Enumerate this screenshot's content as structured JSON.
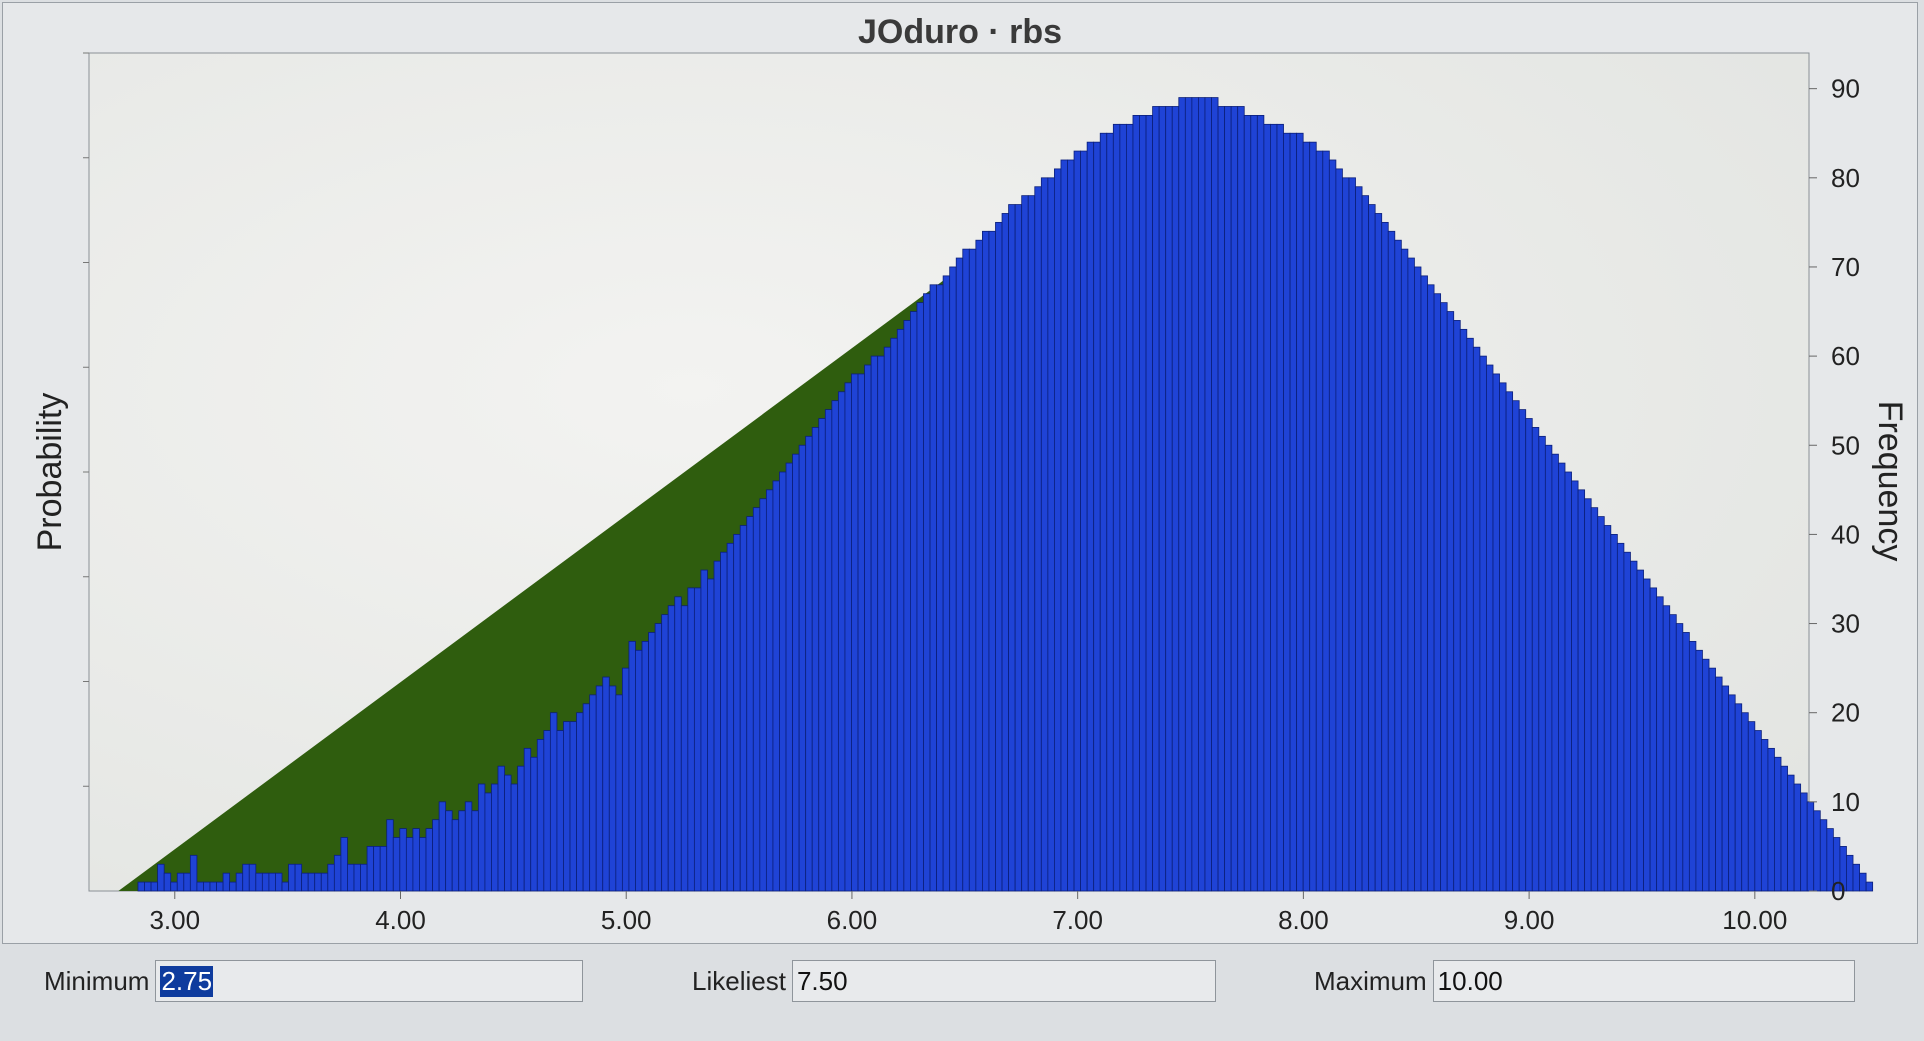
{
  "chart_data": {
    "type": "bar",
    "title": "JOduro · rbs",
    "ylabel_left": "Probability",
    "ylabel_right": "Frequency",
    "xlim": [
      2.62,
      10.24
    ],
    "ylim": [
      0,
      94
    ],
    "x_ticks": [
      "3.00",
      "4.00",
      "5.00",
      "6.00",
      "7.00",
      "8.00",
      "9.00",
      "10.00"
    ],
    "y_ticks": [
      "0",
      "10",
      "20",
      "30",
      "40",
      "50",
      "60",
      "70",
      "80",
      "90"
    ],
    "distribution": {
      "type": "triangular",
      "min": 2.75,
      "mode": 7.5,
      "max": 10.0,
      "peak_frequency": 89
    },
    "bin_width": 0.029,
    "bins_start": 2.75,
    "frequencies": [
      0,
      0,
      0,
      1,
      1,
      1,
      3,
      2,
      1,
      2,
      2,
      4,
      1,
      1,
      1,
      1,
      2,
      1,
      2,
      3,
      3,
      2,
      2,
      2,
      2,
      1,
      3,
      3,
      2,
      2,
      2,
      2,
      3,
      4,
      6,
      3,
      3,
      3,
      5,
      5,
      5,
      8,
      6,
      7,
      6,
      7,
      6,
      7,
      8,
      10,
      9,
      8,
      9,
      10,
      9,
      12,
      11,
      12,
      14,
      13,
      12,
      14,
      16,
      15,
      17,
      18,
      20,
      18,
      19,
      19,
      20,
      21,
      22,
      23,
      24,
      23,
      22,
      25,
      28,
      27,
      28,
      29,
      30,
      31,
      32,
      33,
      32,
      34,
      34,
      36,
      35,
      37,
      38,
      39,
      40,
      41,
      42,
      43,
      44,
      45,
      46,
      47,
      48,
      49,
      50,
      51,
      52,
      53,
      54,
      55,
      56,
      57,
      58,
      58,
      59,
      60,
      60,
      61,
      62,
      63,
      64,
      65,
      66,
      67,
      68,
      68,
      69,
      70,
      71,
      72,
      72,
      73,
      74,
      74,
      75,
      76,
      77,
      77,
      78,
      78,
      79,
      80,
      80,
      81,
      82,
      82,
      83,
      83,
      84,
      84,
      85,
      85,
      86,
      86,
      86,
      87,
      87,
      87,
      88,
      88,
      88,
      88,
      89,
      89,
      89,
      89,
      89,
      89,
      88,
      88,
      88,
      88,
      87,
      87,
      87,
      86,
      86,
      86,
      85,
      85,
      85,
      84,
      84,
      83,
      83,
      82,
      81,
      80,
      80,
      79,
      78,
      77,
      76,
      75,
      74,
      73,
      72,
      71,
      70,
      69,
      68,
      67,
      66,
      65,
      64,
      63,
      62,
      61,
      60,
      59,
      58,
      57,
      56,
      55,
      54,
      53,
      52,
      51,
      50,
      49,
      48,
      47,
      46,
      45,
      44,
      43,
      42,
      41,
      40,
      39,
      38,
      37,
      36,
      35,
      34,
      33,
      32,
      31,
      30,
      29,
      28,
      27,
      26,
      25,
      24,
      23,
      22,
      21,
      20,
      19,
      18,
      17,
      16,
      15,
      14,
      13,
      12,
      11,
      10,
      9,
      8,
      7,
      6,
      5,
      4,
      3,
      2,
      1
    ],
    "grid": false,
    "legend": "none"
  },
  "controls": {
    "minimum": {
      "label": "Minimum",
      "value": "2.75"
    },
    "likeliest": {
      "label": "Likeliest",
      "value": "7.50"
    },
    "maximum": {
      "label": "Maximum",
      "value": "10.00"
    }
  },
  "colors": {
    "bar_fill": "#1f43d6",
    "bar_stroke": "#0b1f7a",
    "curve_fill": "#2f5d0e",
    "plot_bg": "#ececea"
  }
}
